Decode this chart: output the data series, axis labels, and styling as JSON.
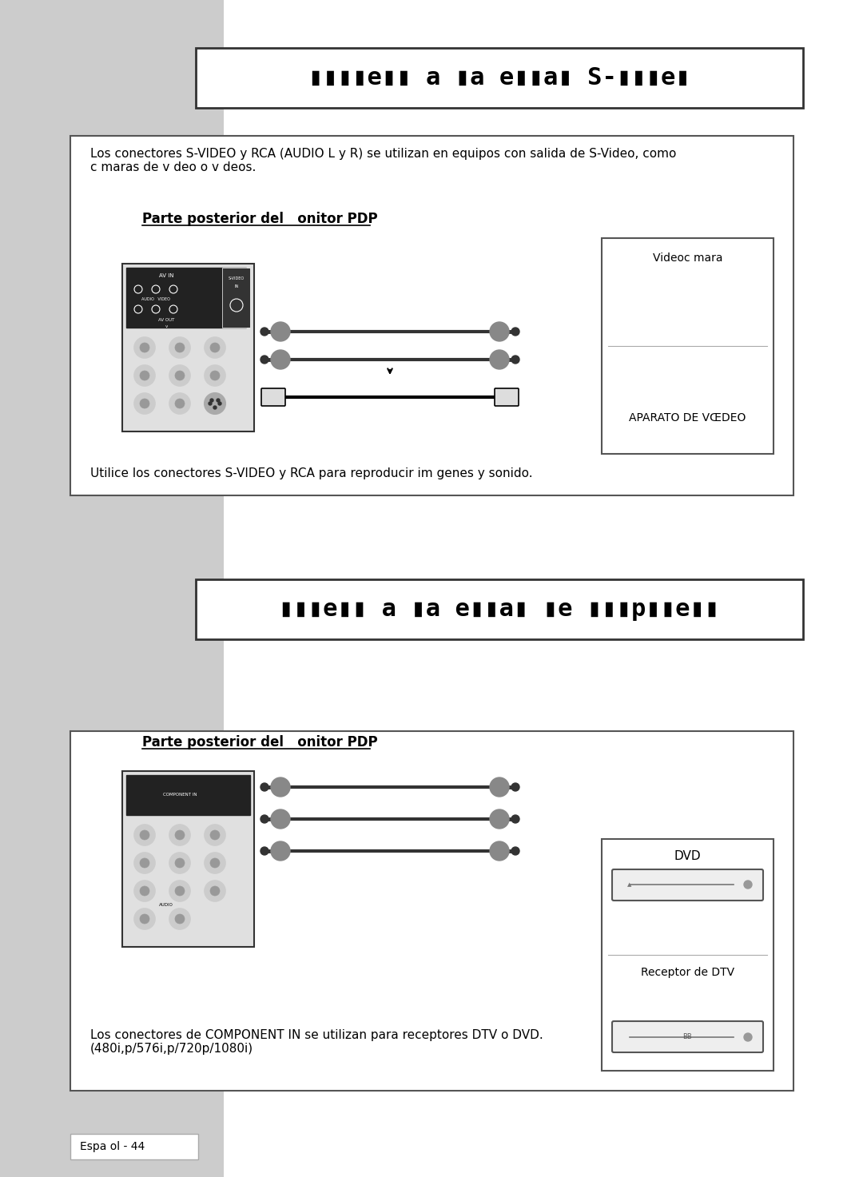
{
  "page_bg": "#ffffff",
  "sidebar_color": "#cccccc",
  "title1_text": "▮▮▮▮e▮▮ a ▮a e▮▮a▮ S-▮▮▮e▮",
  "title2_text": "▮▮▮e▮▮ a ▮a e▮▮a▮ ▮e ▮▮▮p▮▮e▮▮",
  "section1_top_text": "Los conectores S-VIDEO y RCA (AUDIO L y R) se utilizan en equipos con salida de S-Video, como\nc maras de v deo o v deos.",
  "section1_label": "Parte posterior del   onitor PDP",
  "section1_bottom_text": "Utilice los conectores S-VIDEO y RCA para reproducir im genes y sonido.",
  "section1_right_top": "Videoc mara",
  "section1_right_bottom": "APARATO DE VŒDEO",
  "section2_label": "Parte posterior del   onitor PDP",
  "section2_bottom_text": "Los conectores de COMPONENT IN se utilizan para receptores DTV o DVD.\n(480i,p/576i,p/720p/1080i)",
  "section2_right_top": "DVD",
  "section2_right_bottom": "Receptor de DTV",
  "footer_text": "Espa ol - 44",
  "box_border": "#555555",
  "title_box_border": "#333333"
}
